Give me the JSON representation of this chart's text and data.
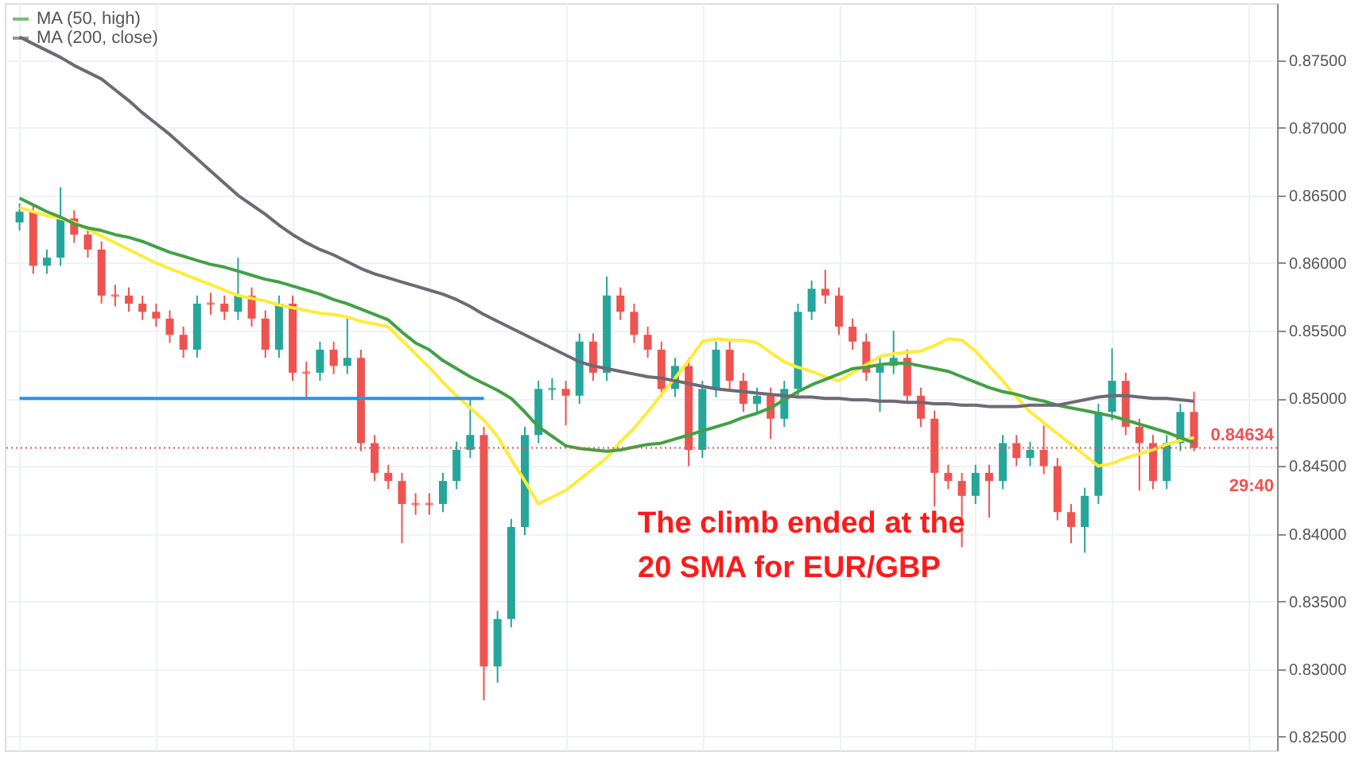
{
  "chart_data": {
    "type": "candlestick",
    "categories": [
      null,
      null,
      null,
      null,
      null,
      null,
      null,
      null,
      null,
      null,
      null,
      null,
      null,
      null,
      null,
      null,
      null,
      null,
      null,
      null,
      null,
      null,
      null,
      null,
      null,
      null,
      null,
      null,
      null,
      null,
      null,
      null,
      null,
      null,
      null,
      null,
      null,
      null,
      null,
      null,
      null,
      null,
      null,
      null,
      null,
      null,
      null,
      null,
      null,
      null,
      null,
      null,
      null,
      null,
      null,
      null,
      null,
      null,
      null,
      null,
      null,
      null,
      null,
      null,
      null,
      null,
      null,
      null,
      null,
      null,
      null,
      null,
      null,
      null,
      null,
      null,
      null,
      null,
      null,
      null,
      null,
      null,
      null,
      null,
      null,
      null,
      null
    ],
    "ohlc": [
      [
        0.863,
        0.8644,
        0.8624,
        0.8638
      ],
      [
        0.8638,
        0.8644,
        0.8592,
        0.8598
      ],
      [
        0.8598,
        0.861,
        0.8592,
        0.8604
      ],
      [
        0.8604,
        0.8656,
        0.8598,
        0.8633
      ],
      [
        0.8633,
        0.8639,
        0.8615,
        0.8621
      ],
      [
        0.8621,
        0.8627,
        0.8604,
        0.861
      ],
      [
        0.861,
        0.8616,
        0.857,
        0.8576
      ],
      [
        0.8576,
        0.8584,
        0.8568,
        0.8576
      ],
      [
        0.8576,
        0.8582,
        0.8564,
        0.857
      ],
      [
        0.857,
        0.8576,
        0.8558,
        0.8564
      ],
      [
        0.8564,
        0.857,
        0.8553,
        0.8559
      ],
      [
        0.8559,
        0.8565,
        0.8541,
        0.8547
      ],
      [
        0.8547,
        0.8553,
        0.853,
        0.8536
      ],
      [
        0.8536,
        0.8576,
        0.853,
        0.857
      ],
      [
        0.857,
        0.8578,
        0.8562,
        0.857
      ],
      [
        0.857,
        0.8576,
        0.8558,
        0.8564
      ],
      [
        0.8564,
        0.8604,
        0.8558,
        0.8576
      ],
      [
        0.8576,
        0.8582,
        0.8553,
        0.8559
      ],
      [
        0.8559,
        0.8565,
        0.853,
        0.8536
      ],
      [
        0.8536,
        0.8576,
        0.853,
        0.857
      ],
      [
        0.857,
        0.8576,
        0.8513,
        0.8519
      ],
      [
        0.8519,
        0.8527,
        0.85,
        0.8519
      ],
      [
        0.8519,
        0.8542,
        0.8513,
        0.8536
      ],
      [
        0.8536,
        0.8542,
        0.8518,
        0.8524
      ],
      [
        0.8524,
        0.8561,
        0.8518,
        0.853
      ],
      [
        0.853,
        0.8536,
        0.8461,
        0.8467
      ],
      [
        0.8467,
        0.8473,
        0.8439,
        0.8445
      ],
      [
        0.8445,
        0.8451,
        0.8433,
        0.8439
      ],
      [
        0.8439,
        0.8445,
        0.8393,
        0.8422
      ],
      [
        0.8422,
        0.843,
        0.8414,
        0.8422
      ],
      [
        0.8422,
        0.843,
        0.8414,
        0.8422
      ],
      [
        0.8422,
        0.8445,
        0.8416,
        0.8439
      ],
      [
        0.8439,
        0.8468,
        0.8433,
        0.8462
      ],
      [
        0.8462,
        0.85,
        0.8456,
        0.8473
      ],
      [
        0.8473,
        0.8479,
        0.8277,
        0.8302
      ],
      [
        0.8302,
        0.8343,
        0.829,
        0.8337
      ],
      [
        0.8337,
        0.8411,
        0.8331,
        0.8405
      ],
      [
        0.8405,
        0.8479,
        0.8399,
        0.8473
      ],
      [
        0.8473,
        0.8513,
        0.8467,
        0.8507
      ],
      [
        0.8507,
        0.8515,
        0.8499,
        0.8507
      ],
      [
        0.8507,
        0.8513,
        0.848,
        0.8502
      ],
      [
        0.8502,
        0.8548,
        0.8496,
        0.8542
      ],
      [
        0.8542,
        0.8548,
        0.8513,
        0.8519
      ],
      [
        0.8519,
        0.859,
        0.8513,
        0.8576
      ],
      [
        0.8576,
        0.8582,
        0.8558,
        0.8564
      ],
      [
        0.8564,
        0.857,
        0.8541,
        0.8547
      ],
      [
        0.8547,
        0.8553,
        0.853,
        0.8536
      ],
      [
        0.8536,
        0.8542,
        0.8501,
        0.8507
      ],
      [
        0.8507,
        0.853,
        0.8501,
        0.8524
      ],
      [
        0.8524,
        0.853,
        0.845,
        0.8462
      ],
      [
        0.8462,
        0.8513,
        0.8456,
        0.8507
      ],
      [
        0.8507,
        0.8542,
        0.8501,
        0.8536
      ],
      [
        0.8536,
        0.8542,
        0.8507,
        0.8513
      ],
      [
        0.8513,
        0.8519,
        0.849,
        0.8496
      ],
      [
        0.8496,
        0.8508,
        0.849,
        0.8502
      ],
      [
        0.8502,
        0.8508,
        0.847,
        0.8485
      ],
      [
        0.8485,
        0.8513,
        0.8479,
        0.8507
      ],
      [
        0.8507,
        0.857,
        0.8501,
        0.8564
      ],
      [
        0.8564,
        0.8587,
        0.8558,
        0.8581
      ],
      [
        0.8581,
        0.8595,
        0.857,
        0.8576
      ],
      [
        0.8576,
        0.8582,
        0.8547,
        0.8553
      ],
      [
        0.8553,
        0.8559,
        0.8536,
        0.8542
      ],
      [
        0.8542,
        0.8548,
        0.8513,
        0.8519
      ],
      [
        0.8519,
        0.853,
        0.849,
        0.8524
      ],
      [
        0.8524,
        0.855,
        0.8518,
        0.853
      ],
      [
        0.853,
        0.8536,
        0.8496,
        0.8502
      ],
      [
        0.8502,
        0.8508,
        0.8479,
        0.8485
      ],
      [
        0.8485,
        0.8491,
        0.842,
        0.8445
      ],
      [
        0.8445,
        0.8451,
        0.8433,
        0.8439
      ],
      [
        0.8439,
        0.8445,
        0.839,
        0.8428
      ],
      [
        0.8428,
        0.8451,
        0.8422,
        0.8445
      ],
      [
        0.8445,
        0.8451,
        0.8412,
        0.8439
      ],
      [
        0.8439,
        0.8473,
        0.8433,
        0.8467
      ],
      [
        0.8467,
        0.8473,
        0.845,
        0.8456
      ],
      [
        0.8456,
        0.8468,
        0.845,
        0.8462
      ],
      [
        0.8462,
        0.848,
        0.8444,
        0.845
      ],
      [
        0.845,
        0.8456,
        0.841,
        0.8416
      ],
      [
        0.8416,
        0.8422,
        0.8393,
        0.8405
      ],
      [
        0.8405,
        0.8434,
        0.8386,
        0.8428
      ],
      [
        0.8428,
        0.8496,
        0.8422,
        0.849
      ],
      [
        0.849,
        0.8537,
        0.8484,
        0.8513
      ],
      [
        0.8513,
        0.8519,
        0.8473,
        0.8479
      ],
      [
        0.8479,
        0.8485,
        0.8432,
        0.8467
      ],
      [
        0.8467,
        0.8473,
        0.8433,
        0.8439
      ],
      [
        0.8439,
        0.8473,
        0.8433,
        0.8467
      ],
      [
        0.8467,
        0.8496,
        0.8461,
        0.849
      ],
      [
        0.849,
        0.8505,
        0.8461,
        0.84634
      ]
    ],
    "colors": [
      "#26a69a",
      "#ef5350",
      "#26a69a",
      "#26a69a",
      "#ef5350",
      "#ef5350",
      "#ef5350",
      "#ef5350",
      "#ef5350",
      "#ef5350",
      "#ef5350",
      "#ef5350",
      "#ef5350",
      "#26a69a",
      "#ef5350",
      "#ef5350",
      "#26a69a",
      "#ef5350",
      "#ef5350",
      "#26a69a",
      "#ef5350",
      "#ef5350",
      "#26a69a",
      "#ef5350",
      "#26a69a",
      "#ef5350",
      "#ef5350",
      "#ef5350",
      "#ef5350",
      "#ef5350",
      "#ef5350",
      "#26a69a",
      "#26a69a",
      "#26a69a",
      "#ef5350",
      "#26a69a",
      "#26a69a",
      "#26a69a",
      "#26a69a",
      "#26a69a",
      "#ef5350",
      "#26a69a",
      "#ef5350",
      "#26a69a",
      "#ef5350",
      "#ef5350",
      "#ef5350",
      "#ef5350",
      "#26a69a",
      "#ef5350",
      "#26a69a",
      "#26a69a",
      "#ef5350",
      "#ef5350",
      "#26a69a",
      "#ef5350",
      "#26a69a",
      "#26a69a",
      "#26a69a",
      "#ef5350",
      "#ef5350",
      "#ef5350",
      "#ef5350",
      "#26a69a",
      "#26a69a",
      "#ef5350",
      "#ef5350",
      "#ef5350",
      "#ef5350",
      "#ef5350",
      "#26a69a",
      "#ef5350",
      "#26a69a",
      "#ef5350",
      "#26a69a",
      "#ef5350",
      "#ef5350",
      "#ef5350",
      "#26a69a",
      "#26a69a",
      "#26a69a",
      "#ef5350",
      "#ef5350",
      "#ef5350",
      "#26a69a",
      "#26a69a",
      "#ef5350"
    ],
    "series": [
      {
        "type": "line",
        "color": "#ffeb3b",
        "values": [
          0.8641,
          0.8638,
          0.8635,
          0.8633,
          0.863,
          0.8625,
          0.862,
          0.8615,
          0.861,
          0.8605,
          0.86,
          0.8596,
          0.8592,
          0.8588,
          0.8584,
          0.858,
          0.8576,
          0.8574,
          0.8572,
          0.8569,
          0.8567,
          0.8565,
          0.8563,
          0.8562,
          0.856,
          0.8557,
          0.8555,
          0.8553,
          0.8543,
          0.8533,
          0.8523,
          0.8512,
          0.8502,
          0.8493,
          0.8484,
          0.8472,
          0.8455,
          0.8439,
          0.8422,
          0.8427,
          0.8432,
          0.844,
          0.8448,
          0.8456,
          0.8468,
          0.8478,
          0.849,
          0.8503,
          0.8515,
          0.8528,
          0.8542,
          0.8544,
          0.8543,
          0.8543,
          0.8541,
          0.8534,
          0.8527,
          0.8523,
          0.852,
          0.8516,
          0.8513,
          0.8519,
          0.8525,
          0.8531,
          0.8533,
          0.8534,
          0.8535,
          0.8539,
          0.8544,
          0.8543,
          0.8535,
          0.8524,
          0.8513,
          0.8501,
          0.849,
          0.8482,
          0.8474,
          0.8466,
          0.8458,
          0.845,
          0.8452,
          0.8456,
          0.8459,
          0.8462,
          0.8466,
          0.8469,
          0.8471
        ]
      },
      {
        "type": "line",
        "name": "MA (50, high)",
        "color": "#43a047",
        "values": [
          0.8648,
          0.8643,
          0.8638,
          0.8634,
          0.8629,
          0.8626,
          0.8624,
          0.8621,
          0.8619,
          0.8616,
          0.8612,
          0.8608,
          0.8605,
          0.8602,
          0.8599,
          0.8597,
          0.8594,
          0.8591,
          0.8588,
          0.8586,
          0.8583,
          0.858,
          0.8577,
          0.8573,
          0.857,
          0.8566,
          0.8562,
          0.8558,
          0.8549,
          0.8541,
          0.8536,
          0.8528,
          0.8522,
          0.8516,
          0.8511,
          0.8506,
          0.85,
          0.849,
          0.8479,
          0.8472,
          0.8465,
          0.8463,
          0.8462,
          0.8461,
          0.8462,
          0.8464,
          0.8466,
          0.8467,
          0.847,
          0.8473,
          0.8476,
          0.8479,
          0.8482,
          0.8486,
          0.8489,
          0.8493,
          0.8499,
          0.8505,
          0.851,
          0.8514,
          0.8518,
          0.8522,
          0.8523,
          0.8525,
          0.8526,
          0.8526,
          0.8524,
          0.8522,
          0.852,
          0.8516,
          0.8512,
          0.8508,
          0.8505,
          0.8503,
          0.85,
          0.8498,
          0.8495,
          0.8493,
          0.8491,
          0.8489,
          0.8487,
          0.8484,
          0.8481,
          0.8478,
          0.8475,
          0.8471,
          0.8467
        ]
      },
      {
        "type": "line",
        "name": "MA (200, close)",
        "color": "#6d6a75",
        "values": [
          0.8767,
          0.8762,
          0.8757,
          0.8752,
          0.8746,
          0.8741,
          0.8736,
          0.8728,
          0.872,
          0.8711,
          0.8703,
          0.8695,
          0.8686,
          0.8677,
          0.8668,
          0.8659,
          0.865,
          0.8643,
          0.8636,
          0.8628,
          0.8621,
          0.8615,
          0.861,
          0.8606,
          0.8601,
          0.8596,
          0.8592,
          0.8589,
          0.8586,
          0.8583,
          0.858,
          0.8577,
          0.8573,
          0.8568,
          0.8562,
          0.8557,
          0.8552,
          0.8547,
          0.8542,
          0.8537,
          0.8532,
          0.8527,
          0.8524,
          0.8522,
          0.852,
          0.8518,
          0.8516,
          0.8515,
          0.8513,
          0.8511,
          0.8509,
          0.8507,
          0.8506,
          0.8505,
          0.8504,
          0.8503,
          0.8502,
          0.8501,
          0.8501,
          0.85,
          0.85,
          0.8499,
          0.8499,
          0.8498,
          0.8498,
          0.8497,
          0.8497,
          0.8496,
          0.8496,
          0.8495,
          0.8495,
          0.8494,
          0.8494,
          0.8494,
          0.8495,
          0.8495,
          0.8495,
          0.8497,
          0.8499,
          0.8501,
          0.8502,
          0.8502,
          0.8501,
          0.85,
          0.85,
          0.8499,
          0.8498
        ]
      },
      {
        "type": "line",
        "color": "#2196f3",
        "values": [
          0.85,
          0.85,
          0.85,
          0.85,
          0.85,
          0.85,
          0.85,
          0.85,
          0.85,
          0.85,
          0.85,
          0.85,
          0.85,
          0.85,
          0.85,
          0.85,
          0.85,
          0.85,
          0.85,
          0.85,
          0.85,
          0.85,
          0.85,
          0.85,
          0.85,
          0.85,
          0.85,
          0.85,
          0.85,
          0.85,
          0.85,
          0.85,
          0.85,
          0.85,
          0.85,
          null,
          null,
          null,
          null,
          null,
          null,
          null,
          null,
          null,
          null,
          null,
          null,
          null,
          null,
          null,
          null,
          null,
          null,
          null,
          null,
          null,
          null,
          null,
          null,
          null,
          null,
          null,
          null,
          null,
          null,
          null,
          null,
          null,
          null,
          null,
          null,
          null,
          null,
          null,
          null,
          null,
          null,
          null,
          null,
          null,
          null,
          null,
          null,
          null,
          null,
          null,
          null
        ]
      }
    ],
    "ylim": [
      0.824,
      0.8792
    ],
    "yticks": [
      {
        "value": 0.825,
        "label": "0.82500"
      },
      {
        "value": 0.83,
        "label": "0.83000"
      },
      {
        "value": 0.835,
        "label": "0.83500"
      },
      {
        "value": 0.84,
        "label": "0.84000"
      },
      {
        "value": 0.845,
        "label": "0.84500"
      },
      {
        "value": 0.85,
        "label": "0.85000"
      },
      {
        "value": 0.855,
        "label": "0.85500"
      },
      {
        "value": 0.86,
        "label": "0.86000"
      },
      {
        "value": 0.865,
        "label": "0.86500"
      },
      {
        "value": 0.87,
        "label": "0.87000"
      },
      {
        "value": 0.875,
        "label": "0.87500"
      }
    ],
    "tick_labels": "y",
    "grid": true,
    "legend": "top left",
    "ref_lines": [
      {
        "axis": "y",
        "value": 0.84634,
        "label": "0.84634",
        "color": "#ef5350",
        "line_style": "dotted"
      }
    ],
    "annotations": [
      "The climb ended at the\n20 SMA for EUR/GBP",
      "29:40"
    ]
  }
}
